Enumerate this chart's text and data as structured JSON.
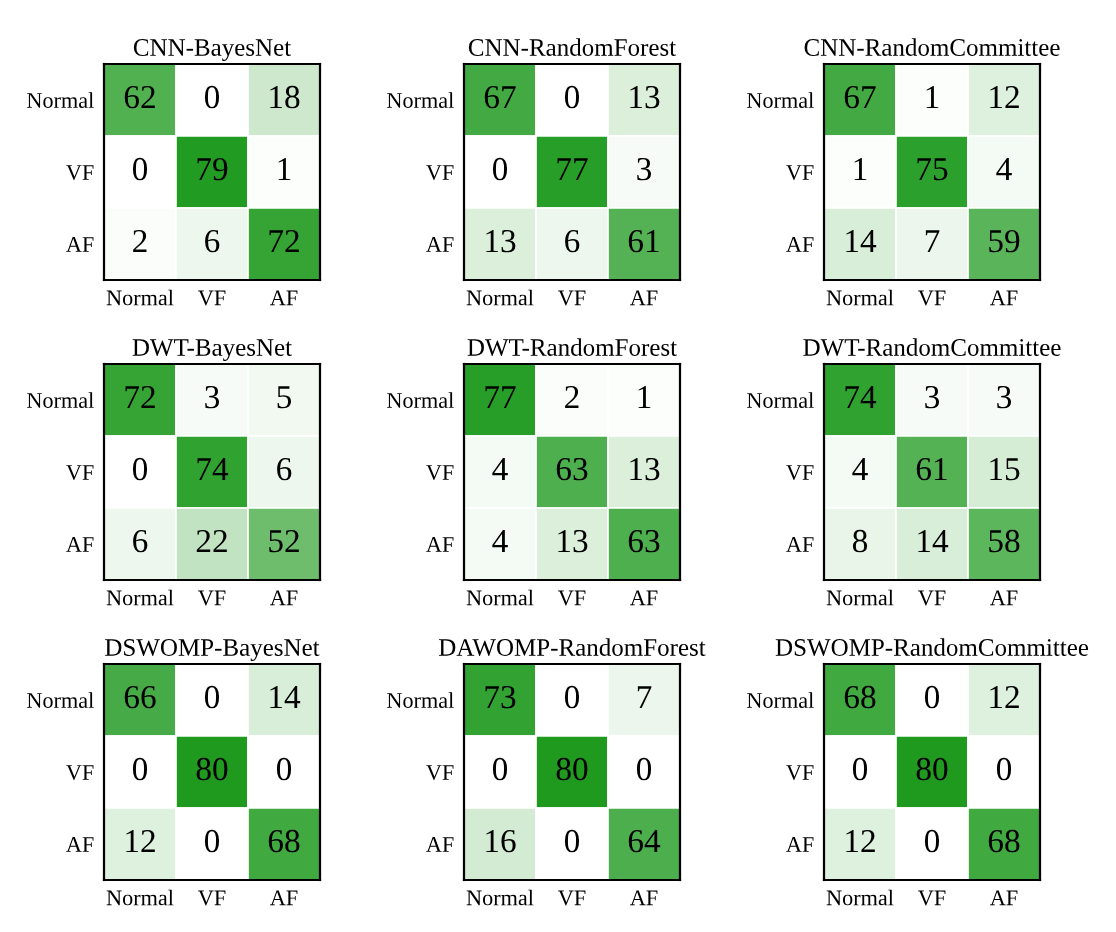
{
  "chart_data": [
    {
      "type": "heatmap",
      "title": "CNN-BayesNet",
      "categories": [
        "Normal",
        "VF",
        "AF"
      ],
      "y_categories": [
        "Normal",
        "VF",
        "AF"
      ],
      "data_labels": true,
      "cells": [
        [
          62,
          0,
          18
        ],
        [
          0,
          79,
          1
        ],
        [
          2,
          6,
          72
        ]
      ]
    },
    {
      "type": "heatmap",
      "title": "CNN-RandomForest",
      "categories": [
        "Normal",
        "VF",
        "AF"
      ],
      "y_categories": [
        "Normal",
        "VF",
        "AF"
      ],
      "data_labels": true,
      "cells": [
        [
          67,
          0,
          13
        ],
        [
          0,
          77,
          3
        ],
        [
          13,
          6,
          61
        ]
      ]
    },
    {
      "type": "heatmap",
      "title": "CNN-RandomCommittee",
      "categories": [
        "Normal",
        "VF",
        "AF"
      ],
      "y_categories": [
        "Normal",
        "VF",
        "AF"
      ],
      "data_labels": true,
      "cells": [
        [
          67,
          1,
          12
        ],
        [
          1,
          75,
          4
        ],
        [
          14,
          7,
          59
        ]
      ]
    },
    {
      "type": "heatmap",
      "title": "DWT-BayesNet",
      "categories": [
        "Normal",
        "VF",
        "AF"
      ],
      "y_categories": [
        "Normal",
        "VF",
        "AF"
      ],
      "data_labels": true,
      "cells": [
        [
          72,
          3,
          5
        ],
        [
          0,
          74,
          6
        ],
        [
          6,
          22,
          52
        ]
      ]
    },
    {
      "type": "heatmap",
      "title": "DWT-RandomForest",
      "categories": [
        "Normal",
        "VF",
        "AF"
      ],
      "y_categories": [
        "Normal",
        "VF",
        "AF"
      ],
      "data_labels": true,
      "cells": [
        [
          77,
          2,
          1
        ],
        [
          4,
          63,
          13
        ],
        [
          4,
          13,
          63
        ]
      ]
    },
    {
      "type": "heatmap",
      "title": "DWT-RandomCommittee",
      "categories": [
        "Normal",
        "VF",
        "AF"
      ],
      "y_categories": [
        "Normal",
        "VF",
        "AF"
      ],
      "data_labels": true,
      "cells": [
        [
          74,
          3,
          3
        ],
        [
          4,
          61,
          15
        ],
        [
          8,
          14,
          58
        ]
      ]
    },
    {
      "type": "heatmap",
      "title": "DSWOMP-BayesNet",
      "categories": [
        "Normal",
        "VF",
        "AF"
      ],
      "y_categories": [
        "Normal",
        "VF",
        "AF"
      ],
      "data_labels": true,
      "cells": [
        [
          66,
          0,
          14
        ],
        [
          0,
          80,
          0
        ],
        [
          12,
          0,
          68
        ]
      ]
    },
    {
      "type": "heatmap",
      "title": "DAWOMP-RandomForest",
      "categories": [
        "Normal",
        "VF",
        "AF"
      ],
      "y_categories": [
        "Normal",
        "VF",
        "AF"
      ],
      "data_labels": true,
      "cells": [
        [
          73,
          0,
          7
        ],
        [
          0,
          80,
          0
        ],
        [
          16,
          0,
          64
        ]
      ]
    },
    {
      "type": "heatmap",
      "title": "DSWOMP-RandomCommittee",
      "categories": [
        "Normal",
        "VF",
        "AF"
      ],
      "y_categories": [
        "Normal",
        "VF",
        "AF"
      ],
      "data_labels": true,
      "cells": [
        [
          68,
          0,
          12
        ],
        [
          0,
          80,
          0
        ],
        [
          12,
          0,
          68
        ]
      ]
    }
  ]
}
